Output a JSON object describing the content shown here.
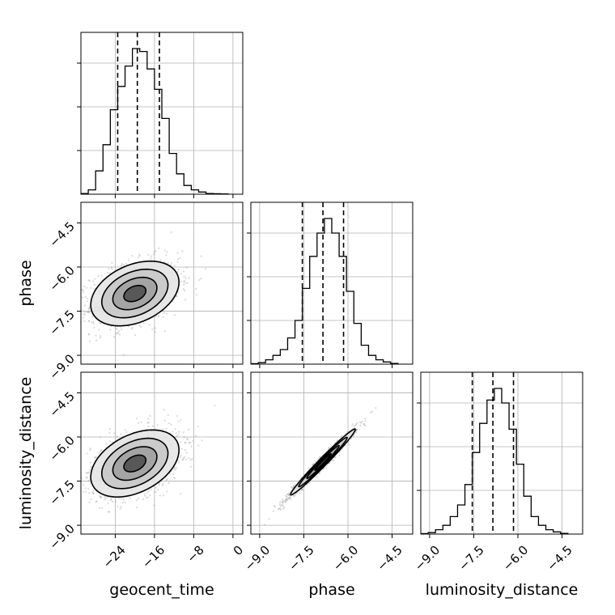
{
  "chart_data": {
    "type": "corner",
    "title": "",
    "parameters": [
      "geocent_time",
      "phase",
      "luminosity_distance"
    ],
    "axis_labels": {
      "geocent_time": "geocent_time",
      "phase": "phase",
      "luminosity_distance": "luminosity_distance"
    },
    "ranges": {
      "geocent_time": [
        -31,
        2
      ],
      "phase": [
        -9.3,
        -3.8
      ],
      "luminosity_distance": [
        -9.3,
        -3.8
      ]
    },
    "ticks": {
      "geocent_time": [
        -24,
        -16,
        -8,
        0
      ],
      "phase": [
        -9.0,
        -7.5,
        -6.0,
        -4.5
      ],
      "luminosity_distance": [
        -9.0,
        -7.5,
        -6.0,
        -4.5
      ]
    },
    "tick_labels": {
      "geocent_time": [
        "−24",
        "−16",
        "−8",
        "0"
      ],
      "phase": [
        "−9.0",
        "−7.5",
        "−6.0",
        "−4.5"
      ],
      "luminosity_distance": [
        "−9.0",
        "−7.5",
        "−6.0",
        "−4.5"
      ]
    },
    "grid": true,
    "histograms": [
      {
        "param": "geocent_time",
        "bin_edges": [
          -31,
          -29.5,
          -28,
          -26.5,
          -25,
          -23.5,
          -22,
          -20.5,
          -19,
          -17.5,
          -16,
          -14.5,
          -13,
          -11.5,
          -10,
          -8.5,
          -7,
          -5.5,
          -4,
          -2.5,
          -1
        ],
        "counts": [
          0.005,
          0.03,
          0.16,
          0.34,
          0.58,
          0.74,
          0.88,
          1.0,
          0.98,
          0.86,
          0.72,
          0.52,
          0.28,
          0.14,
          0.06,
          0.03,
          0.015,
          0.005,
          0.003,
          0.002
        ],
        "quantiles": [
          -23.5,
          -19.5,
          -15
        ]
      },
      {
        "param": "phase",
        "bin_edges": [
          -9.3,
          -9.05,
          -8.8,
          -8.55,
          -8.3,
          -8.05,
          -7.8,
          -7.55,
          -7.3,
          -7.05,
          -6.8,
          -6.55,
          -6.3,
          -6.05,
          -5.8,
          -5.55,
          -5.3,
          -5.05,
          -4.8,
          -4.55,
          -4.3
        ],
        "counts": [
          0.003,
          0.01,
          0.03,
          0.06,
          0.1,
          0.18,
          0.3,
          0.52,
          0.74,
          0.9,
          1.0,
          0.9,
          0.74,
          0.5,
          0.28,
          0.13,
          0.06,
          0.03,
          0.015,
          0.005
        ],
        "quantiles": [
          -7.55,
          -6.85,
          -6.15
        ]
      },
      {
        "param": "luminosity_distance",
        "bin_edges": [
          -9.3,
          -9.05,
          -8.8,
          -8.55,
          -8.3,
          -8.05,
          -7.8,
          -7.55,
          -7.3,
          -7.05,
          -6.8,
          -6.55,
          -6.3,
          -6.05,
          -5.8,
          -5.55,
          -5.3,
          -5.05,
          -4.8,
          -4.55,
          -4.3
        ],
        "counts": [
          0.003,
          0.01,
          0.03,
          0.06,
          0.12,
          0.2,
          0.34,
          0.56,
          0.76,
          0.92,
          1.0,
          0.9,
          0.72,
          0.48,
          0.26,
          0.12,
          0.06,
          0.03,
          0.015,
          0.005
        ],
        "quantiles": [
          -7.55,
          -6.85,
          -6.15
        ]
      }
    ],
    "pairs": [
      {
        "x": "geocent_time",
        "y": "phase",
        "mean": [
          -20,
          -6.9
        ],
        "sigma": [
          4.5,
          0.55
        ],
        "rho": 0.35,
        "contour_levels_sigma": [
          0.5,
          1,
          1.5,
          2
        ]
      },
      {
        "x": "geocent_time",
        "y": "luminosity_distance",
        "mean": [
          -20,
          -6.9
        ],
        "sigma": [
          4.5,
          0.57
        ],
        "rho": 0.4,
        "contour_levels_sigma": [
          0.5,
          1,
          1.5,
          2
        ]
      },
      {
        "x": "phase",
        "y": "luminosity_distance",
        "mean": [
          -6.85,
          -6.85
        ],
        "sigma": [
          0.55,
          0.56
        ],
        "rho": 0.985,
        "contour_levels_sigma": [
          0.5,
          1,
          1.5,
          2
        ]
      }
    ]
  }
}
